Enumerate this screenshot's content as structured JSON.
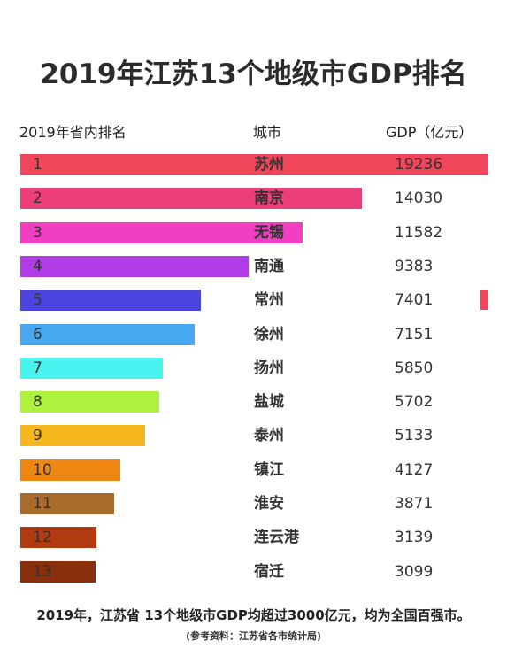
{
  "chart_data": {
    "type": "bar",
    "title": "2019年江苏13个地级市GDP排名",
    "headers": {
      "rank": "2019年省内排名",
      "city": "城市",
      "gdp": "GDP（亿元）"
    },
    "rows": [
      {
        "rank": "1",
        "city": "苏州",
        "value": 19236,
        "color": "#f0455a"
      },
      {
        "rank": "2",
        "city": "南京",
        "value": 14030,
        "color": "#ec3f78"
      },
      {
        "rank": "3",
        "city": "无锡",
        "value": 11582,
        "color": "#f23fc2"
      },
      {
        "rank": "4",
        "city": "南通",
        "value": 9383,
        "color": "#b03ce6"
      },
      {
        "rank": "5",
        "city": "常州",
        "value": 7401,
        "color": "#4b45de"
      },
      {
        "rank": "6",
        "city": "徐州",
        "value": 7151,
        "color": "#49a8f2"
      },
      {
        "rank": "7",
        "city": "扬州",
        "value": 5850,
        "color": "#48f2ee"
      },
      {
        "rank": "8",
        "city": "盐城",
        "value": 5702,
        "color": "#adf23c"
      },
      {
        "rank": "9",
        "city": "泰州",
        "value": 5133,
        "color": "#f6b81e"
      },
      {
        "rank": "10",
        "city": "镇江",
        "value": 4127,
        "color": "#ee8712"
      },
      {
        "rank": "11",
        "city": "淮安",
        "value": 3871,
        "color": "#a86b2b"
      },
      {
        "rank": "12",
        "city": "连云港",
        "value": 3139,
        "color": "#b23a10"
      },
      {
        "rank": "13",
        "city": "宿迁",
        "value": 3099,
        "color": "#88300c"
      }
    ],
    "footnote": "2019年，江苏省 13个地级市GDP均超过3000亿元，均为全国百强市。",
    "source": "(参考资料：江苏省各市统计局)"
  }
}
